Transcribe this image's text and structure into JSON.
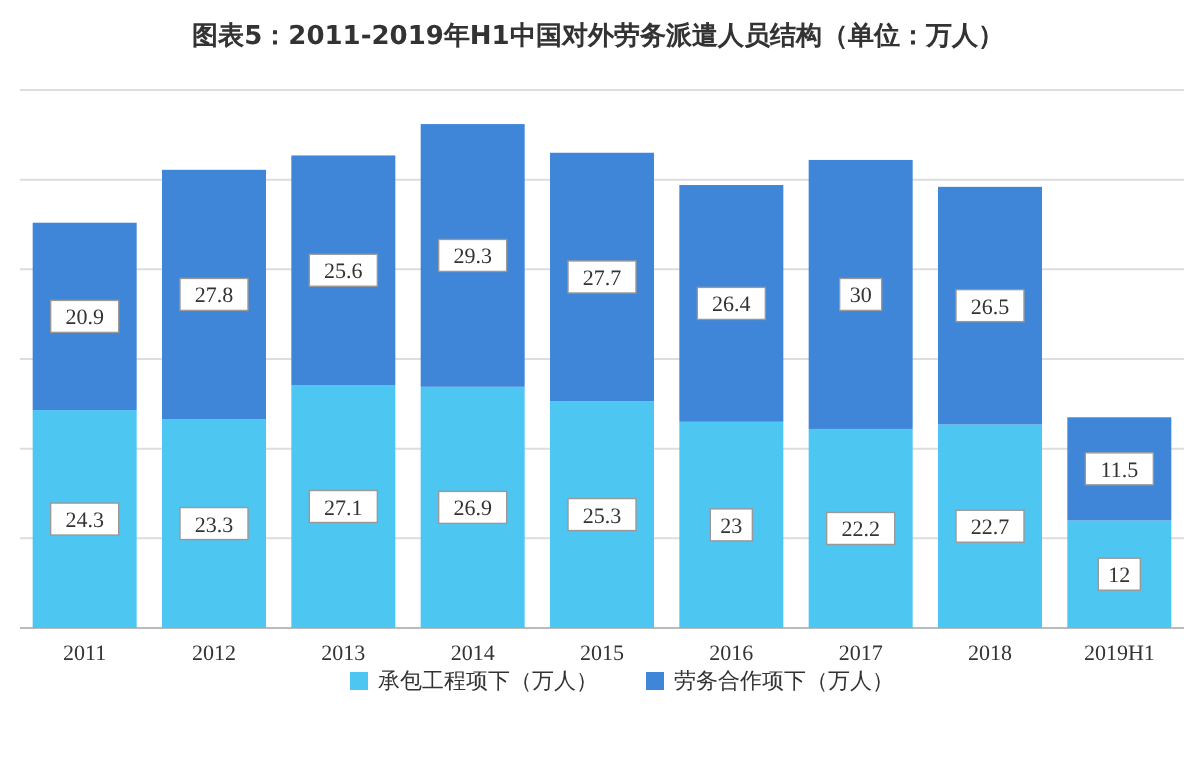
{
  "chart_data": {
    "type": "bar",
    "title": "图表5：2011-2019年H1中国对外劳务派遣人员结构（单位：万人）",
    "categories": [
      "2011",
      "2012",
      "2013",
      "2014",
      "2015",
      "2016",
      "2017",
      "2018",
      "2019H1"
    ],
    "stacked": true,
    "data_labels": true,
    "grid": "y",
    "legend": "bottom",
    "ylim": [
      0,
      60
    ],
    "yticks": [
      {
        "value": 0,
        "label": null
      },
      {
        "value": 10,
        "label": null
      },
      {
        "value": 20,
        "label": null
      },
      {
        "value": 30,
        "label": null
      },
      {
        "value": 40,
        "label": null
      },
      {
        "value": 50,
        "label": null
      },
      {
        "value": 60,
        "label": null
      }
    ],
    "series": [
      {
        "name": "承包工程项下（万人）",
        "color": "#4dc6f2",
        "values": [
          24.3,
          23.3,
          27.1,
          26.9,
          25.3,
          23,
          22.2,
          22.7,
          12
        ]
      },
      {
        "name": "劳务合作项下（万人）",
        "color": "#3f86d8",
        "values": [
          20.9,
          27.8,
          25.6,
          29.3,
          27.7,
          26.4,
          30,
          26.5,
          11.5
        ]
      }
    ]
  }
}
